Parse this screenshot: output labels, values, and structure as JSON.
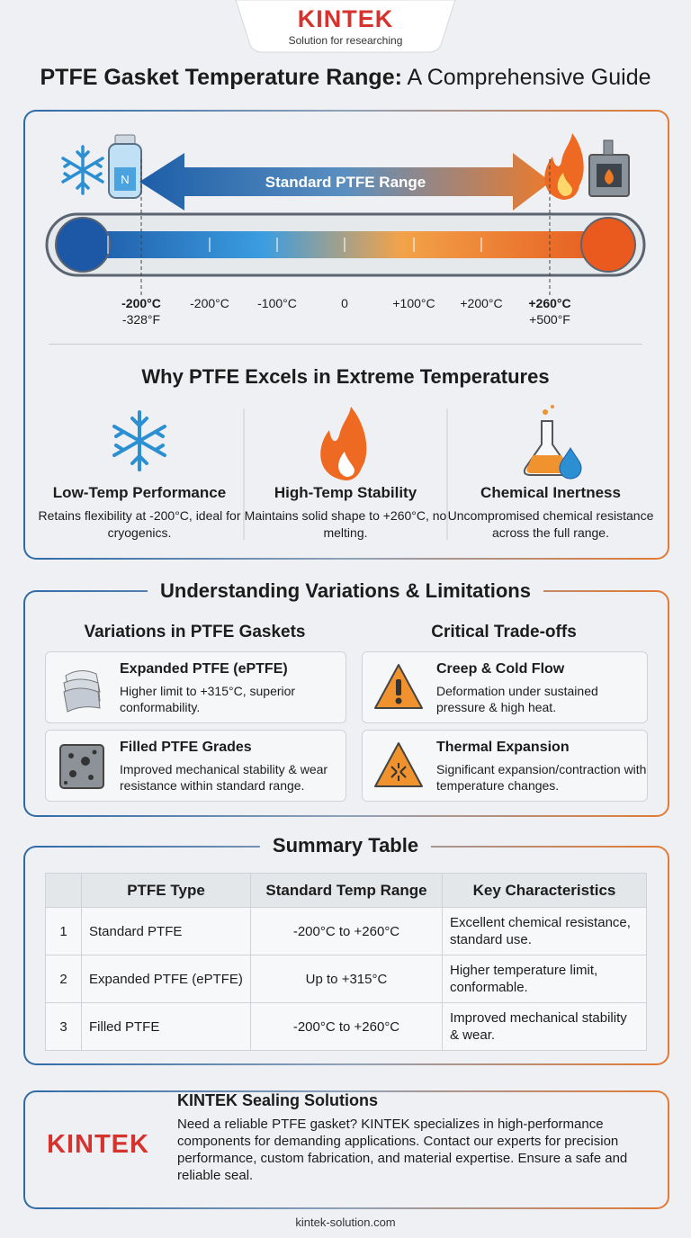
{
  "header": {
    "brand": "KINTEK",
    "tagline": "Solution for researching"
  },
  "title": {
    "bold": "PTFE Gasket Temperature Range:",
    "rest": "A Comprehensive Guide"
  },
  "range": {
    "label": "Standard PTFE Range",
    "bottle_label": "N",
    "scale": [
      {
        "label": "-200°C",
        "sublabel": "-328°F"
      },
      {
        "label": "-200°C"
      },
      {
        "label": "-100°C"
      },
      {
        "label": "0"
      },
      {
        "label": "+100°C"
      },
      {
        "label": "+200°C"
      },
      {
        "label": "+260°C",
        "sublabel": "+500°F"
      }
    ]
  },
  "why": {
    "heading": "Why PTFE Excels in Extreme Temperatures",
    "items": [
      {
        "title": "Low-Temp Performance",
        "text": "Retains flexibility at -200°C, ideal for cryogenics."
      },
      {
        "title": "High-Temp Stability",
        "text": "Maintains solid shape to +260°C, no melting."
      },
      {
        "title": "Chemical Inertness",
        "text": "Uncompromised chemical resistance across the full range."
      }
    ]
  },
  "variations": {
    "heading": "Understanding Variations & Limitations",
    "columns": [
      {
        "heading": "Variations in PTFE Gaskets",
        "cards": [
          {
            "title": "Expanded PTFE (ePTFE)",
            "text": "Higher limit to +315°C, superior conformability."
          },
          {
            "title": "Filled PTFE Grades",
            "text": "Improved mechanical stability & wear resistance within standard range."
          }
        ]
      },
      {
        "heading": "Critical Trade-offs",
        "cards": [
          {
            "title": "Creep & Cold Flow",
            "text": "Deformation under sustained pressure & high heat."
          },
          {
            "title": "Thermal Expansion",
            "text": "Significant expansion/contraction with temperature changes."
          }
        ]
      }
    ]
  },
  "summary": {
    "heading": "Summary Table",
    "table": {
      "header": [
        "PTFE Type",
        "Standard Temp Range",
        "Key Characteristics"
      ],
      "rows": [
        [
          1,
          "Standard PTFE",
          "-200°C to +260°C",
          "Excellent chemical resistance, standard use."
        ],
        [
          2,
          "Expanded PTFE (ePTFE)",
          "Up to +315°C",
          "Higher temperature limit, conformable."
        ],
        [
          3,
          "Filled PTFE",
          "-200°C to +260°C",
          "Improved mechanical stability & wear."
        ]
      ]
    }
  },
  "cta": {
    "logo": "KINTEK",
    "title": "KINTEK Sealing Solutions",
    "text": "Need a reliable PTFE gasket? KINTEK specializes in high-performance components for demanding applications. Contact our experts for precision performance, custom fabrication, and material expertise. Ensure a safe and reliable seal."
  },
  "footer": {
    "url": "kintek-solution.com"
  }
}
